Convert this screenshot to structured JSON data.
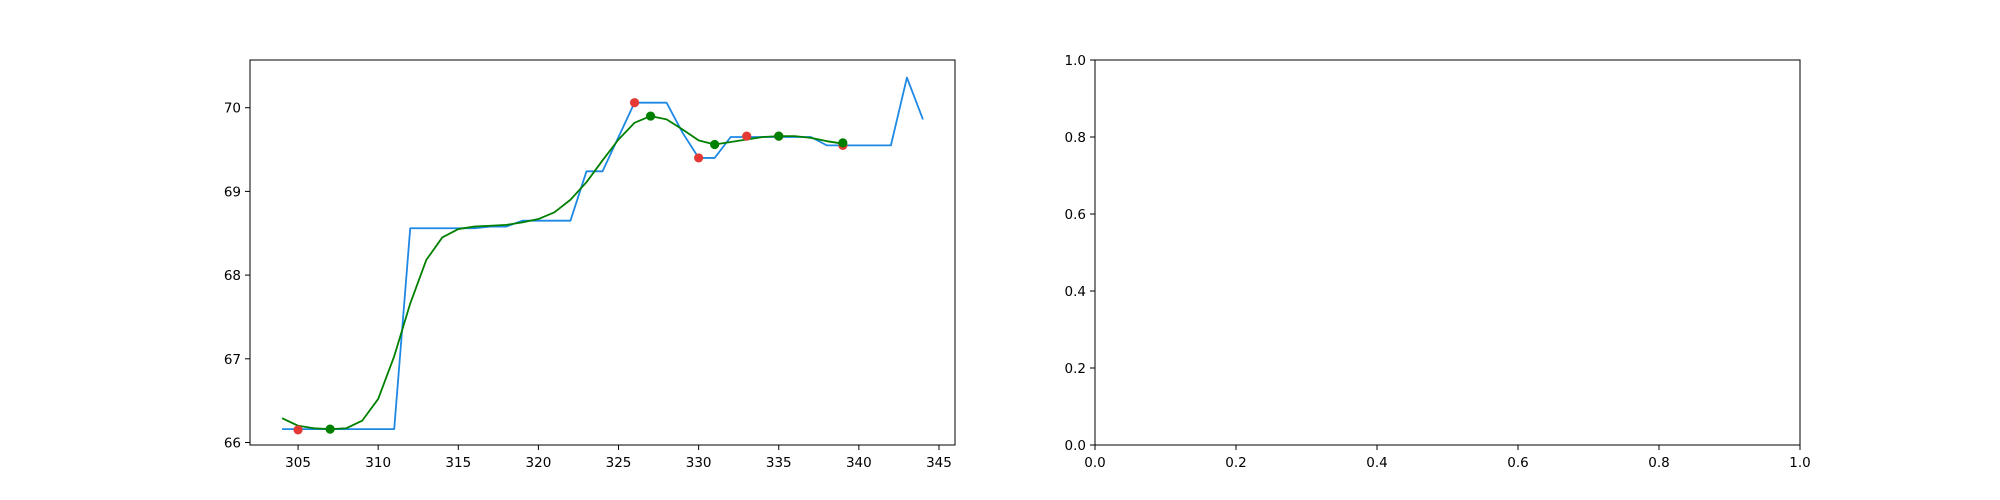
{
  "chart_data": [
    {
      "type": "line",
      "title": "",
      "xlabel": "",
      "ylabel": "",
      "xlim": [
        302.0,
        346.0
      ],
      "ylim": [
        65.97,
        70.57
      ],
      "xticks": [
        305,
        310,
        315,
        320,
        325,
        330,
        335,
        340,
        345
      ],
      "yticks": [
        66,
        67,
        68,
        69,
        70
      ],
      "grid": false,
      "legend": "none",
      "series": [
        {
          "kind": "step-line",
          "color": "#1e88e5",
          "x": [
            304,
            305,
            306,
            307,
            308,
            309,
            310,
            311,
            312,
            313,
            314,
            315,
            316,
            317,
            318,
            319,
            320,
            321,
            322,
            323,
            324,
            325,
            326,
            327,
            328,
            329,
            330,
            331,
            332,
            333,
            334,
            335,
            336,
            337,
            338,
            339,
            340,
            341,
            342,
            343,
            344
          ],
          "y": [
            66.16,
            66.16,
            66.16,
            66.16,
            66.16,
            66.16,
            66.16,
            66.16,
            68.56,
            68.56,
            68.56,
            68.56,
            68.56,
            68.58,
            68.58,
            68.65,
            68.65,
            68.65,
            68.65,
            69.24,
            69.24,
            69.65,
            70.06,
            70.06,
            70.06,
            69.7,
            69.4,
            69.4,
            69.65,
            69.65,
            69.65,
            69.65,
            69.65,
            69.65,
            69.55,
            69.55,
            69.55,
            69.55,
            69.55,
            70.36,
            69.86
          ]
        },
        {
          "kind": "smoothed-line",
          "color": "#008000",
          "x": [
            304,
            305,
            306,
            307,
            308,
            309,
            310,
            311,
            312,
            313,
            314,
            315,
            316,
            317,
            318,
            319,
            320,
            321,
            322,
            323,
            324,
            325,
            326,
            327,
            328,
            329,
            330,
            331,
            332,
            333,
            334,
            335,
            336,
            337,
            338,
            339
          ],
          "y": [
            66.29,
            66.2,
            66.17,
            66.16,
            66.17,
            66.26,
            66.52,
            67.03,
            67.66,
            68.18,
            68.45,
            68.55,
            68.58,
            68.59,
            68.6,
            68.63,
            68.67,
            68.75,
            68.9,
            69.11,
            69.37,
            69.62,
            69.82,
            69.9,
            69.86,
            69.74,
            69.61,
            69.56,
            69.59,
            69.62,
            69.65,
            69.66,
            69.66,
            69.64,
            69.6,
            69.57
          ]
        },
        {
          "kind": "scatter",
          "color": "#e53935",
          "x": [
            305,
            326,
            330,
            333,
            335,
            339
          ],
          "y": [
            66.15,
            70.06,
            69.4,
            69.66,
            69.66,
            69.55
          ]
        },
        {
          "kind": "scatter",
          "color": "#008000",
          "x": [
            307,
            327,
            331,
            335,
            339
          ],
          "y": [
            66.16,
            69.9,
            69.56,
            69.66,
            69.58
          ]
        }
      ]
    },
    {
      "type": "line",
      "title": "",
      "xlabel": "",
      "ylabel": "",
      "xlim": [
        0.0,
        1.0
      ],
      "ylim": [
        0.0,
        1.0
      ],
      "xticks": [
        "0.0",
        "0.2",
        "0.4",
        "0.6",
        "0.8",
        "1.0"
      ],
      "yticks": [
        "0.0",
        "0.2",
        "0.4",
        "0.6",
        "0.8",
        "1.0"
      ],
      "grid": false,
      "legend": "none",
      "series": []
    }
  ]
}
